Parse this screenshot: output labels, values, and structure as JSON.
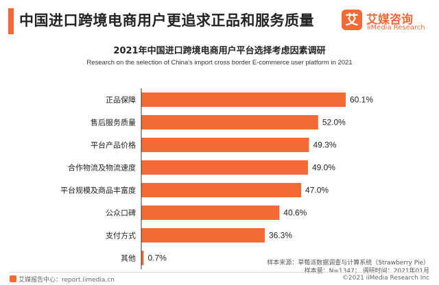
{
  "header": {
    "headline": "中国进口跨境电商用户更追求正品和服务质量",
    "logo_badge": "艾",
    "logo_cn": "艾媒咨询",
    "logo_en": "iiMedia Research"
  },
  "colors": {
    "accent": "#f26a35",
    "bar": "#f26a35",
    "axis": "#333333"
  },
  "chart_data": {
    "type": "bar",
    "orientation": "horizontal",
    "title": "2021年中国进口跨境电商用户平台选择考虑因素调研",
    "subtitle": "Research on the selection of China's import cross border E-commerce user platform in 2021",
    "categories": [
      "正品保障",
      "售后服务质量",
      "平台产品价格",
      "合作物流及物流速度",
      "平台规模及商品丰富度",
      "公众口碑",
      "支付方式",
      "其他"
    ],
    "values": [
      60.1,
      52.0,
      49.3,
      49.0,
      47.0,
      40.6,
      36.3,
      0.7
    ],
    "value_labels": [
      "60.1%",
      "52.0%",
      "49.3%",
      "49.0%",
      "47.0%",
      "40.6%",
      "36.3%",
      "0.7%"
    ],
    "xlim": [
      0,
      60.1
    ],
    "grid": false,
    "legend": "none"
  },
  "notes": {
    "source": "样本来源：草莓派数据调查与计算系统（Strawberry Pie）",
    "sample": "样本量：N=1347；  调研时间：2021年01月"
  },
  "footer": {
    "left": "艾媒报告中心：report.iimedia.cn",
    "right": "©2021  iiMedia Research  Inc"
  }
}
